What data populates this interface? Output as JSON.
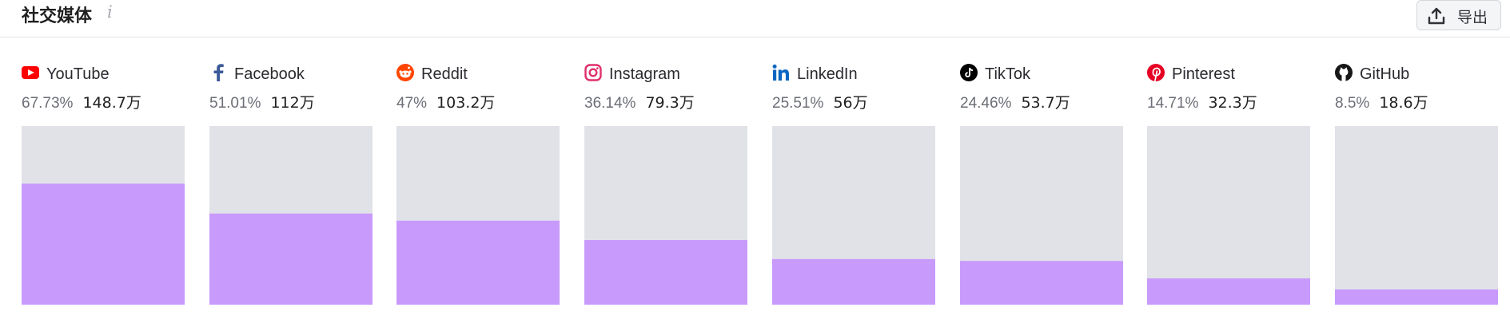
{
  "header": {
    "title": "社交媒体",
    "export_label": "导出"
  },
  "colors": {
    "bar_fill": "#c89afc",
    "bar_track": "#e1e2e8",
    "youtube": "#ff0000",
    "facebook": "#1877f2",
    "reddit": "#ff4500",
    "instagram": "#e1306c",
    "linkedin": "#0a66c2",
    "tiktok": "#000000",
    "pinterest": "#e60023",
    "github": "#181717"
  },
  "chart_data": {
    "type": "bar",
    "categories": [
      "YouTube",
      "Facebook",
      "Reddit",
      "Instagram",
      "LinkedIn",
      "TikTok",
      "Pinterest",
      "GitHub"
    ],
    "icons": [
      "youtube-icon",
      "facebook-icon",
      "reddit-icon",
      "instagram-icon",
      "linkedin-icon",
      "tiktok-icon",
      "pinterest-icon",
      "github-icon"
    ],
    "values": [
      67.73,
      51.01,
      47,
      36.14,
      25.51,
      24.46,
      14.71,
      8.5
    ],
    "value_labels": [
      "67.73%",
      "51.01%",
      "47%",
      "36.14%",
      "25.51%",
      "24.46%",
      "14.71%",
      "8.5%"
    ],
    "counts": [
      "148.7万",
      "112万",
      "103.2万",
      "79.3万",
      "56万",
      "53.7万",
      "32.3万",
      "18.6万"
    ],
    "ylim": [
      0,
      100
    ],
    "grid": false
  }
}
